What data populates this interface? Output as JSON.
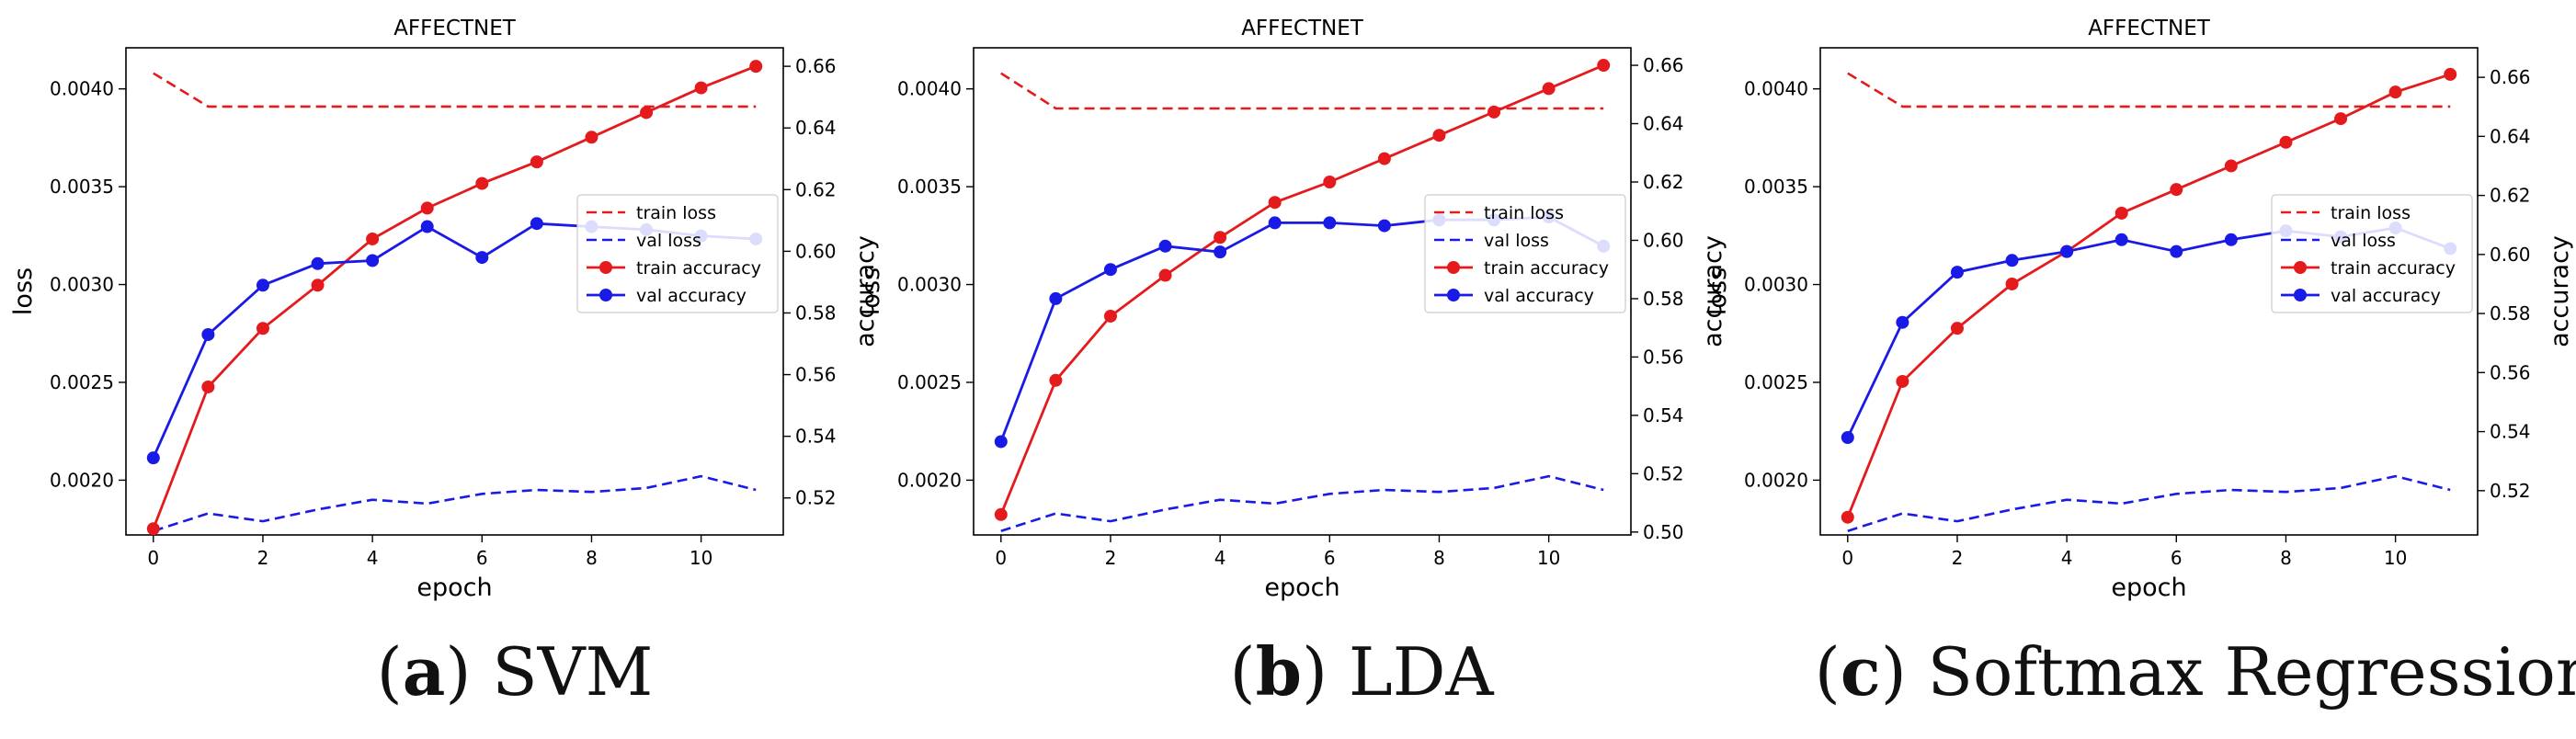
{
  "colors": {
    "red": "#e41a1c",
    "blue": "#1a1ae6",
    "axis": "#000000"
  },
  "chart_data": [
    {
      "type": "line",
      "title": "AFFECTNET",
      "xlabel": "epoch",
      "ylabel": "loss",
      "ylabel_right": "accuracy",
      "x": [
        0,
        1,
        2,
        3,
        4,
        5,
        6,
        7,
        8,
        9,
        10,
        11
      ],
      "x_ticks": [
        "0",
        "2",
        "4",
        "6",
        "8",
        "10"
      ],
      "y_ticks": [
        "0.0020",
        "0.0025",
        "0.0030",
        "0.0035",
        "0.0040"
      ],
      "y_ticks_right": [
        "0.52",
        "0.54",
        "0.56",
        "0.58",
        "0.60",
        "0.62",
        "0.64",
        "0.66"
      ],
      "ylim": [
        0.00172,
        0.00421
      ],
      "ylim_right": [
        0.508,
        0.666
      ],
      "legend_position": "center-right",
      "series": [
        {
          "name": "train loss",
          "axis": "left",
          "style": "dashed",
          "color": "red",
          "values": [
            0.00408,
            0.00391,
            0.00391,
            0.00391,
            0.00391,
            0.00391,
            0.00391,
            0.00391,
            0.00391,
            0.00391,
            0.00391,
            0.00391
          ]
        },
        {
          "name": "val loss",
          "axis": "left",
          "style": "dashed",
          "color": "blue",
          "values": [
            0.00174,
            0.00183,
            0.00179,
            0.00185,
            0.0019,
            0.00188,
            0.00193,
            0.00195,
            0.00194,
            0.00196,
            0.00202,
            0.00195
          ]
        },
        {
          "name": "train accuracy",
          "axis": "right",
          "style": "solid-marker",
          "color": "red",
          "values": [
            0.51,
            0.556,
            0.575,
            0.589,
            0.604,
            0.614,
            0.622,
            0.629,
            0.637,
            0.645,
            0.653,
            0.66
          ]
        },
        {
          "name": "val accuracy",
          "axis": "right",
          "style": "solid-marker",
          "color": "blue",
          "values": [
            0.533,
            0.573,
            0.589,
            0.596,
            0.597,
            0.608,
            0.598,
            0.609,
            0.608,
            0.607,
            0.605,
            0.604
          ]
        }
      ]
    },
    {
      "type": "line",
      "title": "AFFECTNET",
      "xlabel": "epoch",
      "ylabel": "loss",
      "ylabel_right": "accuracy",
      "x": [
        0,
        1,
        2,
        3,
        4,
        5,
        6,
        7,
        8,
        9,
        10,
        11
      ],
      "x_ticks": [
        "0",
        "2",
        "4",
        "6",
        "8",
        "10"
      ],
      "y_ticks": [
        "0.0020",
        "0.0025",
        "0.0030",
        "0.0035",
        "0.0040"
      ],
      "y_ticks_right": [
        "0.50",
        "0.52",
        "0.54",
        "0.56",
        "0.58",
        "0.60",
        "0.62",
        "0.64",
        "0.66"
      ],
      "ylim": [
        0.00172,
        0.00421
      ],
      "ylim_right": [
        0.499,
        0.666
      ],
      "legend_position": "center-right",
      "series": [
        {
          "name": "train loss",
          "axis": "left",
          "style": "dashed",
          "color": "red",
          "values": [
            0.00408,
            0.0039,
            0.0039,
            0.0039,
            0.0039,
            0.0039,
            0.0039,
            0.0039,
            0.0039,
            0.0039,
            0.0039,
            0.0039
          ]
        },
        {
          "name": "val loss",
          "axis": "left",
          "style": "dashed",
          "color": "blue",
          "values": [
            0.00174,
            0.00183,
            0.00179,
            0.00185,
            0.0019,
            0.00188,
            0.00193,
            0.00195,
            0.00194,
            0.00196,
            0.00202,
            0.00195
          ]
        },
        {
          "name": "train accuracy",
          "axis": "right",
          "style": "solid-marker",
          "color": "red",
          "values": [
            0.506,
            0.552,
            0.574,
            0.588,
            0.601,
            0.613,
            0.62,
            0.628,
            0.636,
            0.644,
            0.652,
            0.66
          ]
        },
        {
          "name": "val accuracy",
          "axis": "right",
          "style": "solid-marker",
          "color": "blue",
          "values": [
            0.531,
            0.58,
            0.59,
            0.598,
            0.596,
            0.606,
            0.606,
            0.605,
            0.607,
            0.607,
            0.608,
            0.598
          ]
        }
      ]
    },
    {
      "type": "line",
      "title": "AFFECTNET",
      "xlabel": "epoch",
      "ylabel": "loss",
      "ylabel_right": "accuracy",
      "x": [
        0,
        1,
        2,
        3,
        4,
        5,
        6,
        7,
        8,
        9,
        10,
        11
      ],
      "x_ticks": [
        "0",
        "2",
        "4",
        "6",
        "8",
        "10"
      ],
      "y_ticks": [
        "0.0020",
        "0.0025",
        "0.0030",
        "0.0035",
        "0.0040"
      ],
      "y_ticks_right": [
        "0.52",
        "0.54",
        "0.56",
        "0.58",
        "0.60",
        "0.62",
        "0.64",
        "0.66"
      ],
      "ylim": [
        0.00172,
        0.00421
      ],
      "ylim_right": [
        0.505,
        0.67
      ],
      "legend_position": "center-right",
      "series": [
        {
          "name": "train loss",
          "axis": "left",
          "style": "dashed",
          "color": "red",
          "values": [
            0.00408,
            0.00391,
            0.00391,
            0.00391,
            0.00391,
            0.00391,
            0.00391,
            0.00391,
            0.00391,
            0.00391,
            0.00391,
            0.00391
          ]
        },
        {
          "name": "val loss",
          "axis": "left",
          "style": "dashed",
          "color": "blue",
          "values": [
            0.00174,
            0.00183,
            0.00179,
            0.00185,
            0.0019,
            0.00188,
            0.00193,
            0.00195,
            0.00194,
            0.00196,
            0.00202,
            0.00195
          ]
        },
        {
          "name": "train accuracy",
          "axis": "right",
          "style": "solid-marker",
          "color": "red",
          "values": [
            0.511,
            0.557,
            0.575,
            0.59,
            0.601,
            0.614,
            0.622,
            0.63,
            0.638,
            0.646,
            0.655,
            0.661
          ]
        },
        {
          "name": "val accuracy",
          "axis": "right",
          "style": "solid-marker",
          "color": "blue",
          "values": [
            0.538,
            0.577,
            0.594,
            0.598,
            0.601,
            0.605,
            0.601,
            0.605,
            0.608,
            0.606,
            0.609,
            0.602
          ]
        }
      ]
    }
  ],
  "captions": [
    {
      "letter": "a",
      "open": "(",
      "close": ")",
      "text": " SVM"
    },
    {
      "letter": "b",
      "open": "(",
      "close": ")",
      "text": " LDA"
    },
    {
      "letter": "c",
      "open": "(",
      "close": ")",
      "text": " Softmax Regression"
    }
  ]
}
